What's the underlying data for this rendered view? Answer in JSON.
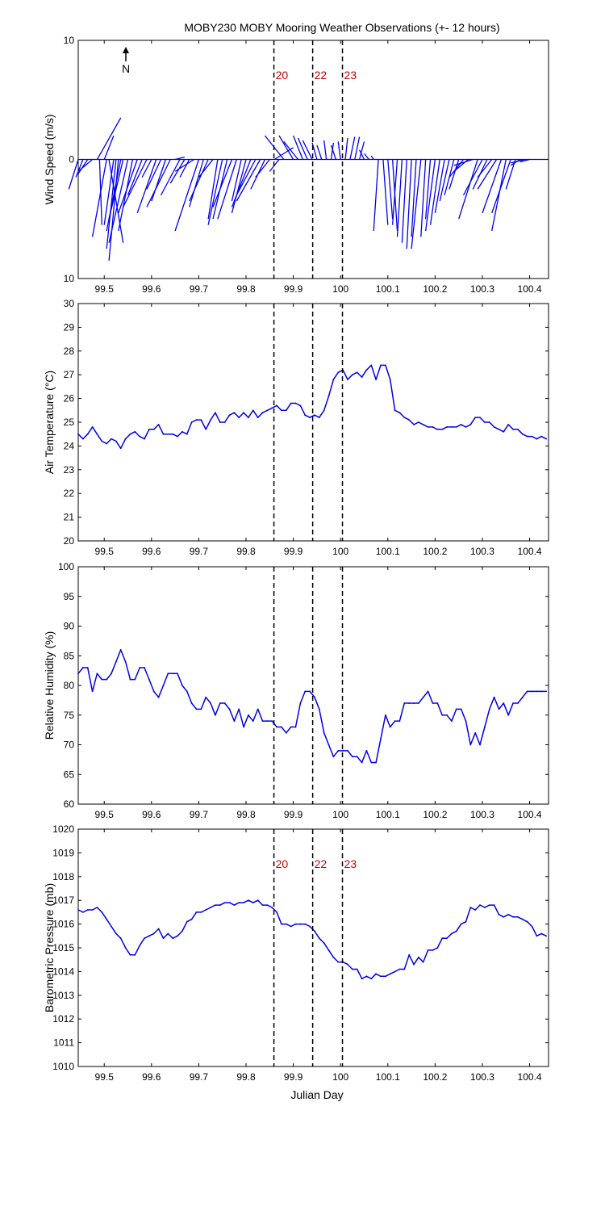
{
  "title": "MOBY230 MOBY Mooring Weather Observations (+- 12 hours)",
  "colors": {
    "line": "#0000ee",
    "annotation": "#cc0000",
    "axes": "#000000"
  },
  "north_label": "N",
  "xlabel": "Julian Day",
  "xlim": [
    99.445,
    100.44
  ],
  "xticks": [
    99.5,
    99.6,
    99.7,
    99.8,
    99.9,
    100,
    100.1,
    100.2,
    100.3,
    100.4
  ],
  "xtick_labels": [
    "99.5",
    "99.6",
    "99.7",
    "99.8",
    "99.9",
    "100",
    "100.1",
    "100.2",
    "100.3",
    "100.4"
  ],
  "vlines": [
    99.859,
    99.941,
    100.004
  ],
  "vline_labels": [
    "20",
    "22",
    "23"
  ],
  "chart_data": [
    {
      "type": "line",
      "id": "wind",
      "ylabel": "Wind Speed (m/s)",
      "ylim": [
        -10,
        10
      ],
      "ytick_values": [
        -10,
        0,
        10
      ],
      "ytick_labels": [
        "10",
        "0",
        "10"
      ],
      "show_vline_labels": true,
      "show_north": true,
      "series": [
        {
          "values": []
        }
      ],
      "wind_vectors": {
        "x": [
          99.445,
          99.455,
          99.465,
          99.475,
          99.485,
          99.49,
          99.5,
          99.505,
          99.51,
          99.52,
          99.525,
          99.53,
          99.535,
          99.54,
          99.55,
          99.56,
          99.57,
          99.58,
          99.59,
          99.6,
          99.61,
          99.62,
          99.63,
          99.64,
          99.65,
          99.66,
          99.67,
          99.68,
          99.69,
          99.7,
          99.71,
          99.72,
          99.73,
          99.74,
          99.75,
          99.76,
          99.77,
          99.78,
          99.79,
          99.8,
          99.81,
          99.82,
          99.83,
          99.84,
          99.85,
          99.86,
          99.87,
          99.88,
          99.9,
          99.91,
          99.92,
          99.93,
          99.94,
          99.95,
          99.96,
          99.97,
          99.98,
          99.99,
          100,
          100.01,
          100.02,
          100.03,
          100.04,
          100.05,
          100.06,
          100.07,
          100.08,
          100.09,
          100.1,
          100.11,
          100.12,
          100.13,
          100.14,
          100.15,
          100.16,
          100.17,
          100.18,
          100.19,
          100.2,
          100.21,
          100.22,
          100.23,
          100.24,
          100.25,
          100.26,
          100.27,
          100.28,
          100.29,
          100.3,
          100.31,
          100.32,
          100.33,
          100.34,
          100.35,
          100.36,
          100.37,
          100.38,
          100.39,
          100.4
        ],
        "u": [
          -0.02,
          -0.015,
          -0.02,
          -0.03,
          0.05,
          0.005,
          0.02,
          -0.03,
          0.03,
          -0.02,
          -0.02,
          -0.02,
          -0.03,
          -0.03,
          -0.04,
          -0.03,
          -0.04,
          -0.03,
          -0.05,
          -0.02,
          -0.04,
          -0.03,
          -0.03,
          -0.05,
          0.02,
          -0.04,
          -0.03,
          -0.02,
          -0.04,
          -0.05,
          -0.03,
          -0.04,
          -0.03,
          -0.02,
          -0.03,
          -0.03,
          -0.04,
          -0.04,
          -0.02,
          -0.03,
          -0.04,
          -0.04,
          -0.05,
          -0.03,
          -0.03,
          0.04,
          -0.02,
          -0.04,
          -0.03,
          -0.03,
          -0.02,
          -0.02,
          -0.02,
          -0.01,
          -0.01,
          -0.005,
          0.005,
          -0.01,
          -0.005,
          0.005,
          0.01,
          0.01,
          0.01,
          -0.01,
          -0.01,
          -0.005,
          -0.01,
          0.01,
          0.01,
          0.01,
          -0.01,
          -0.01,
          -0.01,
          -0.01,
          -0.01,
          -0.02,
          -0.01,
          -0.01,
          -0.02,
          -0.02,
          -0.02,
          -0.02,
          -0.02,
          -0.02,
          -0.03,
          -0.03,
          -0.04,
          -0.04,
          -0.04,
          -0.03,
          -0.03,
          -0.04,
          -0.04,
          -0.03,
          -0.04,
          -0.02,
          -0.02,
          -0.03,
          -0.02
        ],
        "v": [
          -2.5,
          -1.5,
          -1.2,
          -1.0,
          3.5,
          -5.5,
          2.0,
          -6.5,
          -7.0,
          -5.5,
          -7.5,
          -8.5,
          -6.0,
          -5.0,
          -7.0,
          -6.0,
          -4.5,
          -3.0,
          -4.0,
          -1.5,
          -4.5,
          -2.5,
          -3.5,
          -4.0,
          0.2,
          -3.0,
          -2.0,
          -1.5,
          -1.0,
          -6.0,
          -4.0,
          -3.5,
          -1.5,
          -5.0,
          -5.5,
          -5.0,
          -4.0,
          -5.0,
          -3.5,
          -4.5,
          -4.0,
          -3.0,
          -3.5,
          -2.5,
          -1.5,
          1.0,
          -1.0,
          2.0,
          2.0,
          1.5,
          2.0,
          1.8,
          1.6,
          1.4,
          1.2,
          1.6,
          1.4,
          1.2,
          1.5,
          1.8,
          1.9,
          1.9,
          1.5,
          0.8,
          0.5,
          0.3,
          -6.0,
          -5.5,
          -5.0,
          -6.0,
          -5.5,
          -6.5,
          -7.0,
          -7.5,
          -6.5,
          -7.5,
          -6.5,
          -5.0,
          -6.0,
          -5.5,
          -4.5,
          -3.5,
          -3.0,
          -2.5,
          -1.5,
          -1.0,
          -0.5,
          -5.0,
          -3.0,
          -2.5,
          -1.5,
          -2.5,
          -4.5,
          -6.0,
          -4.5,
          -2.5,
          -0.5,
          -0.3,
          -0.2
        ]
      }
    },
    {
      "type": "line",
      "id": "air",
      "ylabel": "Air Temperature (°C)",
      "ylim": [
        20,
        30
      ],
      "ytick_values": [
        20,
        21,
        22,
        23,
        24,
        25,
        26,
        27,
        28,
        29,
        30
      ],
      "ytick_labels": [
        "20",
        "21",
        "22",
        "23",
        "24",
        "25",
        "26",
        "27",
        "28",
        "29",
        "30"
      ],
      "show_vline_labels": false,
      "series": [
        {
          "x": [
            99.445,
            99.455,
            99.465,
            99.475,
            99.485,
            99.495,
            99.505,
            99.515,
            99.525,
            99.535,
            99.545,
            99.555,
            99.565,
            99.575,
            99.585,
            99.595,
            99.605,
            99.615,
            99.625,
            99.635,
            99.645,
            99.655,
            99.665,
            99.675,
            99.685,
            99.695,
            99.705,
            99.715,
            99.725,
            99.735,
            99.745,
            99.755,
            99.765,
            99.775,
            99.785,
            99.795,
            99.805,
            99.815,
            99.825,
            99.835,
            99.845,
            99.855,
            99.865,
            99.875,
            99.885,
            99.895,
            99.905,
            99.915,
            99.925,
            99.935,
            99.945,
            99.955,
            99.965,
            99.975,
            99.985,
            99.995,
            100.005,
            100.015,
            100.025,
            100.035,
            100.045,
            100.055,
            100.065,
            100.075,
            100.085,
            100.095,
            100.105,
            100.115,
            100.125,
            100.135,
            100.145,
            100.155,
            100.165,
            100.175,
            100.185,
            100.195,
            100.205,
            100.215,
            100.225,
            100.235,
            100.245,
            100.255,
            100.265,
            100.275,
            100.285,
            100.295,
            100.305,
            100.315,
            100.325,
            100.335,
            100.345,
            100.355,
            100.365,
            100.375,
            100.385,
            100.395,
            100.405,
            100.415,
            100.425,
            100.435
          ],
          "values": [
            24.5,
            24.3,
            24.5,
            24.8,
            24.5,
            24.2,
            24.1,
            24.3,
            24.2,
            23.9,
            24.3,
            24.5,
            24.6,
            24.4,
            24.3,
            24.7,
            24.7,
            24.9,
            24.5,
            24.5,
            24.5,
            24.4,
            24.6,
            24.5,
            25.0,
            25.1,
            25.1,
            24.7,
            25.1,
            25.4,
            25.0,
            25.0,
            25.3,
            25.4,
            25.2,
            25.4,
            25.2,
            25.5,
            25.2,
            25.4,
            25.5,
            25.6,
            25.7,
            25.5,
            25.5,
            25.8,
            25.8,
            25.7,
            25.3,
            25.2,
            25.3,
            25.2,
            25.5,
            26.1,
            26.8,
            27.1,
            27.2,
            26.8,
            27.0,
            27.1,
            26.9,
            27.2,
            27.4,
            26.8,
            27.4,
            27.4,
            26.8,
            25.5,
            25.4,
            25.2,
            25.1,
            24.9,
            25.0,
            24.9,
            24.8,
            24.8,
            24.7,
            24.7,
            24.8,
            24.8,
            24.8,
            24.9,
            24.8,
            24.9,
            25.2,
            25.2,
            25.0,
            25.0,
            24.8,
            24.7,
            24.6,
            24.9,
            24.7,
            24.7,
            24.5,
            24.4,
            24.4,
            24.3,
            24.4,
            24.3
          ]
        }
      ]
    },
    {
      "type": "line",
      "id": "rh",
      "ylabel": "Relative Humidity (%)",
      "ylim": [
        60,
        100
      ],
      "ytick_values": [
        60,
        65,
        70,
        75,
        80,
        85,
        90,
        95,
        100
      ],
      "ytick_labels": [
        "60",
        "65",
        "70",
        "75",
        "80",
        "85",
        "90",
        "95",
        "100"
      ],
      "show_vline_labels": false,
      "series": [
        {
          "x": [
            99.445,
            99.455,
            99.465,
            99.475,
            99.485,
            99.495,
            99.505,
            99.515,
            99.525,
            99.535,
            99.545,
            99.555,
            99.565,
            99.575,
            99.585,
            99.595,
            99.605,
            99.615,
            99.625,
            99.635,
            99.645,
            99.655,
            99.665,
            99.675,
            99.685,
            99.695,
            99.705,
            99.715,
            99.725,
            99.735,
            99.745,
            99.755,
            99.765,
            99.775,
            99.785,
            99.795,
            99.805,
            99.815,
            99.825,
            99.835,
            99.845,
            99.855,
            99.865,
            99.875,
            99.885,
            99.895,
            99.905,
            99.915,
            99.925,
            99.935,
            99.945,
            99.955,
            99.965,
            99.975,
            99.985,
            99.995,
            100.005,
            100.015,
            100.025,
            100.035,
            100.045,
            100.055,
            100.065,
            100.075,
            100.085,
            100.095,
            100.105,
            100.115,
            100.125,
            100.135,
            100.145,
            100.155,
            100.165,
            100.175,
            100.185,
            100.195,
            100.205,
            100.215,
            100.225,
            100.235,
            100.245,
            100.255,
            100.265,
            100.275,
            100.285,
            100.295,
            100.305,
            100.315,
            100.325,
            100.335,
            100.345,
            100.355,
            100.365,
            100.375,
            100.385,
            100.395,
            100.405,
            100.415,
            100.425,
            100.435
          ],
          "values": [
            82,
            83,
            83,
            79,
            82,
            81,
            81,
            82,
            84,
            86,
            84,
            81,
            81,
            83,
            83,
            81,
            79,
            78,
            80,
            82,
            82,
            82,
            80,
            79,
            77,
            76,
            76,
            78,
            77,
            75,
            77,
            77,
            76,
            74,
            76,
            73,
            75,
            74,
            76,
            74,
            74,
            74,
            73,
            73,
            72,
            73,
            73,
            77,
            79,
            79,
            78,
            76,
            72,
            70,
            68,
            69,
            69,
            69,
            68,
            68,
            67,
            69,
            67,
            67,
            71,
            75,
            73,
            74,
            74,
            77,
            77,
            77,
            77,
            78,
            79,
            77,
            77,
            75,
            75,
            74,
            76,
            76,
            74,
            70,
            72,
            70,
            73,
            76,
            78,
            76,
            77,
            75,
            77,
            77,
            78,
            79,
            79,
            79,
            79,
            79
          ]
        }
      ]
    },
    {
      "type": "line",
      "id": "pressure",
      "ylabel": "Barometric Pressure (mb)",
      "xlabel": "Julian Day",
      "ylim": [
        1010,
        1020
      ],
      "ytick_values": [
        1010,
        1011,
        1012,
        1013,
        1014,
        1015,
        1016,
        1017,
        1018,
        1019,
        1020
      ],
      "ytick_labels": [
        "1010",
        "1011",
        "1012",
        "1013",
        "1014",
        "1015",
        "1016",
        "1017",
        "1018",
        "1019",
        "1020"
      ],
      "show_vline_labels": true,
      "series": [
        {
          "x": [
            99.445,
            99.455,
            99.465,
            99.475,
            99.485,
            99.495,
            99.505,
            99.515,
            99.525,
            99.535,
            99.545,
            99.555,
            99.565,
            99.575,
            99.585,
            99.595,
            99.605,
            99.615,
            99.625,
            99.635,
            99.645,
            99.655,
            99.665,
            99.675,
            99.685,
            99.695,
            99.705,
            99.715,
            99.725,
            99.735,
            99.745,
            99.755,
            99.765,
            99.775,
            99.785,
            99.795,
            99.805,
            99.815,
            99.825,
            99.835,
            99.845,
            99.855,
            99.865,
            99.875,
            99.885,
            99.895,
            99.905,
            99.915,
            99.925,
            99.935,
            99.945,
            99.955,
            99.965,
            99.975,
            99.985,
            99.995,
            100.005,
            100.015,
            100.025,
            100.035,
            100.045,
            100.055,
            100.065,
            100.075,
            100.085,
            100.095,
            100.105,
            100.115,
            100.125,
            100.135,
            100.145,
            100.155,
            100.165,
            100.175,
            100.185,
            100.195,
            100.205,
            100.215,
            100.225,
            100.235,
            100.245,
            100.255,
            100.265,
            100.275,
            100.285,
            100.295,
            100.305,
            100.315,
            100.325,
            100.335,
            100.345,
            100.355,
            100.365,
            100.375,
            100.385,
            100.395,
            100.405,
            100.415,
            100.425,
            100.435
          ],
          "values": [
            1016.6,
            1016.5,
            1016.6,
            1016.6,
            1016.7,
            1016.5,
            1016.2,
            1015.9,
            1015.6,
            1015.4,
            1015.0,
            1014.7,
            1014.7,
            1015.1,
            1015.4,
            1015.5,
            1015.6,
            1015.8,
            1015.4,
            1015.6,
            1015.4,
            1015.5,
            1015.7,
            1016.1,
            1016.2,
            1016.5,
            1016.5,
            1016.6,
            1016.7,
            1016.8,
            1016.8,
            1016.9,
            1016.9,
            1016.8,
            1016.9,
            1016.9,
            1017.0,
            1016.9,
            1017.0,
            1016.8,
            1016.8,
            1016.7,
            1016.5,
            1016.0,
            1016.0,
            1015.9,
            1016.0,
            1016.0,
            1016.0,
            1015.9,
            1015.7,
            1015.4,
            1015.2,
            1014.9,
            1014.6,
            1014.4,
            1014.4,
            1014.3,
            1014.1,
            1014.1,
            1013.7,
            1013.8,
            1013.7,
            1013.9,
            1013.8,
            1013.8,
            1013.9,
            1014.0,
            1014.1,
            1014.1,
            1014.7,
            1014.3,
            1014.6,
            1014.4,
            1014.9,
            1014.9,
            1015.0,
            1015.4,
            1015.4,
            1015.6,
            1015.7,
            1016.0,
            1016.1,
            1016.7,
            1016.6,
            1016.8,
            1016.7,
            1016.8,
            1016.8,
            1016.4,
            1016.3,
            1016.4,
            1016.3,
            1016.3,
            1016.2,
            1016.1,
            1015.9,
            1015.5,
            1015.6,
            1015.5
          ]
        }
      ]
    }
  ]
}
